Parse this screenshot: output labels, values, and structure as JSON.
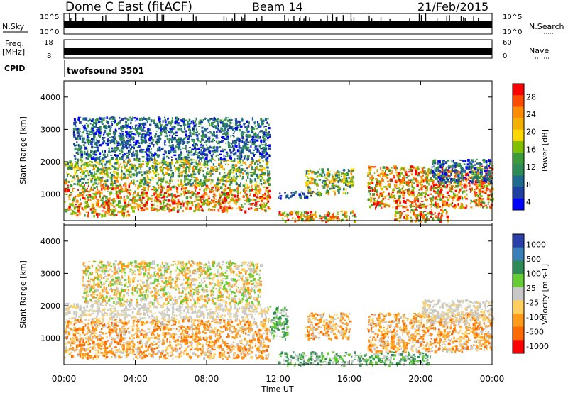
{
  "header": {
    "station": "Dome C East (fitACF)",
    "beam": "Beam 14",
    "date": "21/Feb/2015"
  },
  "top_panels": {
    "nsky_label": "N.Sky",
    "nsky_ticks": [
      "10^5",
      "10^0"
    ],
    "nsearch_label": "N.Search",
    "nsearch_ticks": [
      "10^5",
      "10^0"
    ],
    "freq_label": "Freq.",
    "freq_unit": "[MHz]",
    "freq_ticks": [
      "18",
      "8"
    ],
    "nave_label": "Nave",
    "nave_ticks": [
      "60",
      "0"
    ],
    "cpid_label": "CPID",
    "cpid_value": "twofsound 3501"
  },
  "chart_data": [
    {
      "type": "heatmap",
      "name": "power",
      "ylabel": "Slant Range [km]",
      "xlabel": "",
      "ylim": [
        180,
        4500
      ],
      "y_ticks": [
        "4000",
        "3000",
        "2000",
        "1000"
      ],
      "colorbar": {
        "title": "Power [dB]",
        "ticks": [
          "28",
          "24",
          "20",
          "16",
          "12",
          "8",
          "4"
        ],
        "colors": [
          "#ff0000",
          "#ff4a00",
          "#ff8c00",
          "#f2b100",
          "#ffd700",
          "#80c000",
          "#3c9a3c",
          "#2e8b57",
          "#1f6a8f",
          "#1f40a0",
          "#0000ff"
        ]
      },
      "features": [
        {
          "t0": 0.0,
          "t1": 3.6,
          "r0": 350,
          "r1": 1300,
          "level": "strong"
        },
        {
          "t0": 3.6,
          "t1": 11.5,
          "r0": 500,
          "r1": 1300,
          "level": "strong"
        },
        {
          "t0": 0.0,
          "t1": 11.5,
          "r0": 1300,
          "r1": 2100,
          "level": "medium"
        },
        {
          "t0": 0.5,
          "t1": 11.5,
          "r0": 2100,
          "r1": 3400,
          "level": "weak"
        },
        {
          "t0": 12.0,
          "t1": 16.3,
          "r0": 180,
          "r1": 500,
          "level": "strong"
        },
        {
          "t0": 12.0,
          "t1": 14.0,
          "r0": 900,
          "r1": 1100,
          "level": "weak"
        },
        {
          "t0": 13.5,
          "t1": 16.2,
          "r0": 1000,
          "r1": 1800,
          "level": "medium"
        },
        {
          "t0": 17.0,
          "t1": 24.0,
          "r0": 600,
          "r1": 1900,
          "level": "strong"
        },
        {
          "t0": 18.5,
          "t1": 21.5,
          "r0": 180,
          "r1": 550,
          "level": "strong"
        },
        {
          "t0": 20.5,
          "t1": 24.0,
          "r0": 1400,
          "r1": 2100,
          "level": "weak"
        }
      ]
    },
    {
      "type": "heatmap",
      "name": "velocity",
      "ylabel": "Slant Range [km]",
      "xlabel": "Time UT",
      "ylim": [
        180,
        4500
      ],
      "y_ticks": [
        "4000",
        "3000",
        "2000",
        "1000"
      ],
      "x_ticks": [
        "00:00",
        "04:00",
        "08:00",
        "12:00",
        "16:00",
        "20:00",
        "00:00"
      ],
      "colorbar": {
        "title": "Velocity [m s-1]",
        "ticks": [
          "1000",
          "500",
          "100",
          "25",
          "-25",
          "-100",
          "-500",
          "-1000"
        ],
        "colors": [
          "#2a3fa8",
          "#3a7fb8",
          "#2e8b57",
          "#66cc33",
          "#c8c8c8",
          "#ffd060",
          "#ff9a1a",
          "#ff6a00",
          "#ff0000"
        ]
      },
      "features": [
        {
          "t0": 0.0,
          "t1": 11.5,
          "r0": 400,
          "r1": 1600,
          "level": "away"
        },
        {
          "t0": 0.0,
          "t1": 11.5,
          "r0": 1600,
          "r1": 2100,
          "level": "slow"
        },
        {
          "t0": 1.0,
          "t1": 11.0,
          "r0": 2100,
          "r1": 3400,
          "level": "mixed"
        },
        {
          "t0": 11.5,
          "t1": 12.5,
          "r0": 1000,
          "r1": 2000,
          "level": "toward"
        },
        {
          "t0": 12.0,
          "t1": 20.5,
          "r0": 180,
          "r1": 600,
          "level": "toward"
        },
        {
          "t0": 13.5,
          "t1": 16.0,
          "r0": 1000,
          "r1": 1800,
          "level": "away"
        },
        {
          "t0": 17.0,
          "t1": 24.0,
          "r0": 600,
          "r1": 1800,
          "level": "away"
        },
        {
          "t0": 20.0,
          "t1": 24.0,
          "r0": 1500,
          "r1": 2200,
          "level": "slow"
        }
      ]
    }
  ]
}
